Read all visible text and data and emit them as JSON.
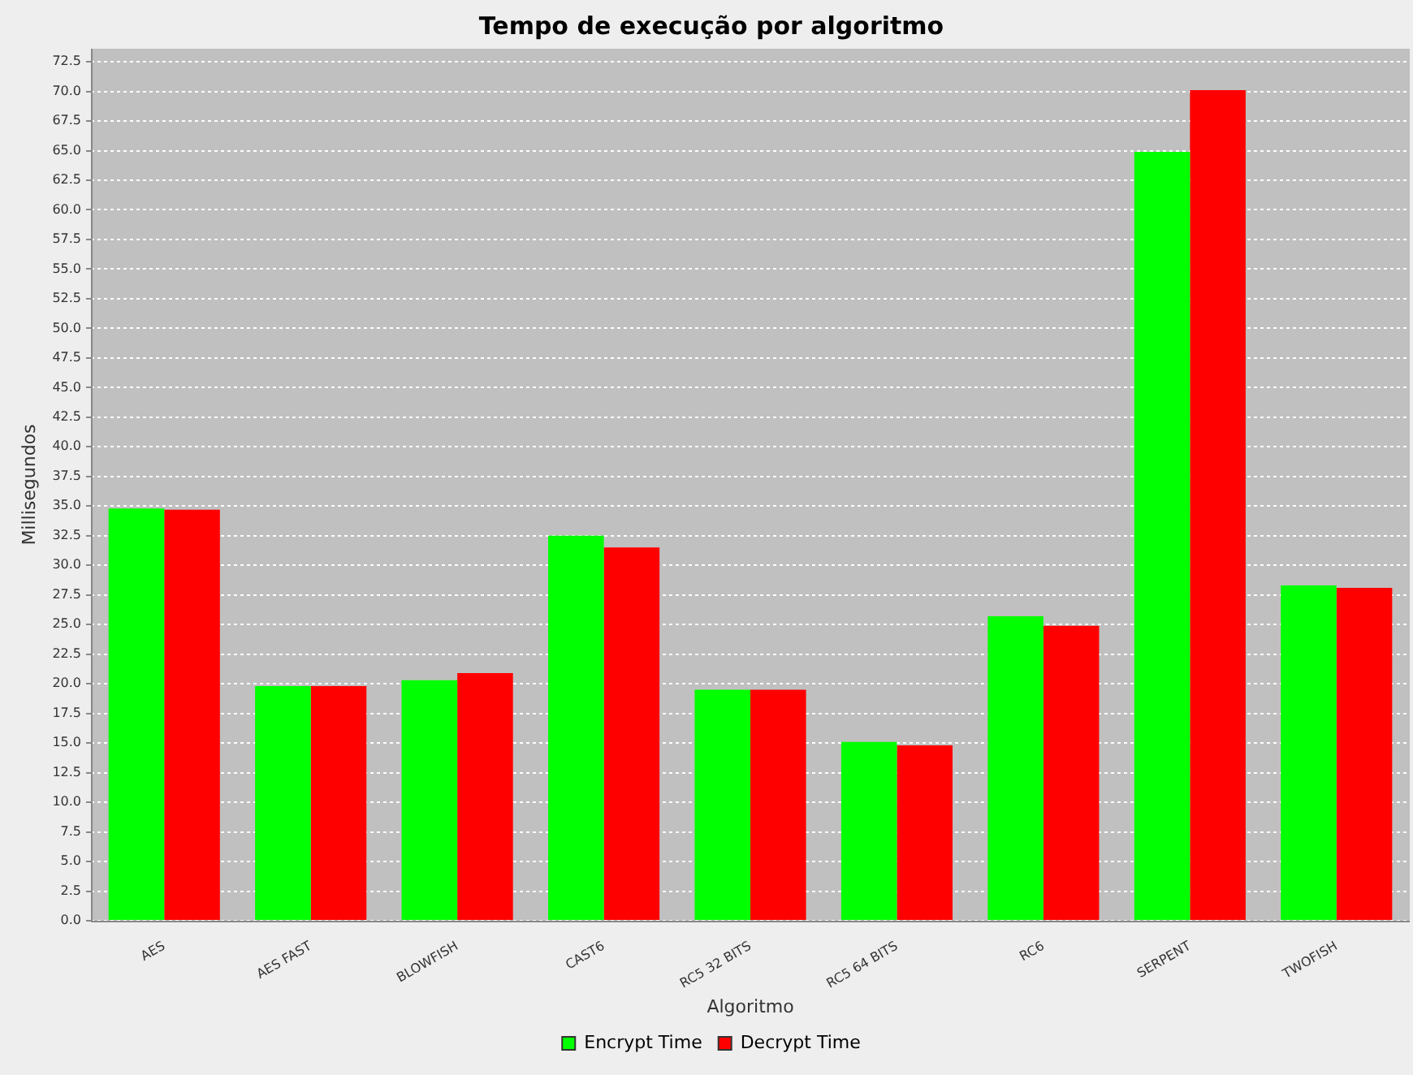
{
  "chart_data": {
    "type": "bar",
    "title": "Tempo de execução por algoritmo",
    "xlabel": "Algoritmo",
    "ylabel": "Millisegundos",
    "categories": [
      "AES",
      "AES FAST",
      "BLOWFISH",
      "CAST6",
      "RC5 32 BITS",
      "RC5 64 BITS",
      "RC6",
      "SERPENT",
      "TWOFISH"
    ],
    "series": [
      {
        "name": "Encrypt Time",
        "color": "#00ff00",
        "values": [
          34.8,
          19.8,
          20.3,
          32.5,
          19.5,
          15.1,
          25.7,
          64.9,
          28.3
        ]
      },
      {
        "name": "Decrypt Time",
        "color": "#ff0000",
        "values": [
          34.7,
          19.8,
          20.9,
          31.5,
          19.5,
          14.8,
          24.9,
          70.1,
          28.1
        ]
      }
    ],
    "ylim": [
      0,
      73.6
    ],
    "yticks": [
      {
        "value": 0,
        "label": "0.0"
      },
      {
        "value": 2.5,
        "label": "2.5"
      },
      {
        "value": 5,
        "label": "5.0"
      },
      {
        "value": 7.5,
        "label": "7.5"
      },
      {
        "value": 10,
        "label": "10.0"
      },
      {
        "value": 12.5,
        "label": "12.5"
      },
      {
        "value": 15,
        "label": "15.0"
      },
      {
        "value": 17.5,
        "label": "17.5"
      },
      {
        "value": 20,
        "label": "20.0"
      },
      {
        "value": 22.5,
        "label": "22.5"
      },
      {
        "value": 25,
        "label": "25.0"
      },
      {
        "value": 27.5,
        "label": "27.5"
      },
      {
        "value": 30,
        "label": "30.0"
      },
      {
        "value": 32.5,
        "label": "32.5"
      },
      {
        "value": 35,
        "label": "35.0"
      },
      {
        "value": 37.5,
        "label": "37.5"
      },
      {
        "value": 40,
        "label": "40.0"
      },
      {
        "value": 42.5,
        "label": "42.5"
      },
      {
        "value": 45,
        "label": "45.0"
      },
      {
        "value": 47.5,
        "label": "47.5"
      },
      {
        "value": 50,
        "label": "50.0"
      },
      {
        "value": 52.5,
        "label": "52.5"
      },
      {
        "value": 55,
        "label": "55.0"
      },
      {
        "value": 57.5,
        "label": "57.5"
      },
      {
        "value": 60,
        "label": "60.0"
      },
      {
        "value": 62.5,
        "label": "62.5"
      },
      {
        "value": 65,
        "label": "65.0"
      },
      {
        "value": 67.5,
        "label": "67.5"
      },
      {
        "value": 70,
        "label": "70.0"
      },
      {
        "value": 72.5,
        "label": "72.5"
      }
    ],
    "grid": "y",
    "legend": "bottom"
  }
}
